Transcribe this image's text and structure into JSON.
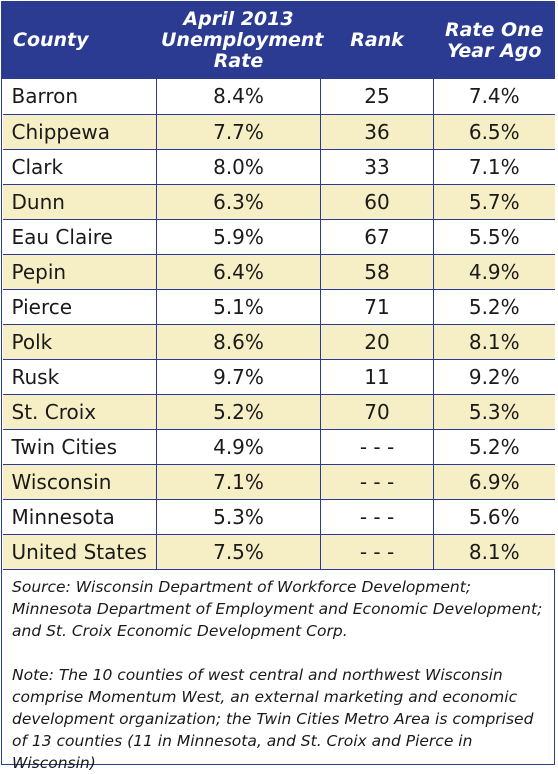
{
  "table": {
    "headers": {
      "county": "County",
      "rate_line1": "April 2013",
      "rate_line2": "Unemployment",
      "rate_line3": "Rate",
      "rank": "Rank",
      "ago_line1": "Rate One",
      "ago_line2": "Year Ago"
    },
    "rows": [
      {
        "county": "Barron",
        "rate": "8.4%",
        "rank": "25",
        "ago": "7.4%"
      },
      {
        "county": "Chippewa",
        "rate": "7.7%",
        "rank": "36",
        "ago": "6.5%"
      },
      {
        "county": "Clark",
        "rate": "8.0%",
        "rank": "33",
        "ago": "7.1%"
      },
      {
        "county": "Dunn",
        "rate": "6.3%",
        "rank": "60",
        "ago": "5.7%"
      },
      {
        "county": "Eau Claire",
        "rate": "5.9%",
        "rank": "67",
        "ago": "5.5%"
      },
      {
        "county": "Pepin",
        "rate": "6.4%",
        "rank": "58",
        "ago": "4.9%"
      },
      {
        "county": "Pierce",
        "rate": "5.1%",
        "rank": "71",
        "ago": "5.2%"
      },
      {
        "county": "Polk",
        "rate": "8.6%",
        "rank": "20",
        "ago": "8.1%"
      },
      {
        "county": "Rusk",
        "rate": "9.7%",
        "rank": "11",
        "ago": "9.2%"
      },
      {
        "county": "St. Croix",
        "rate": "5.2%",
        "rank": "70",
        "ago": "5.3%"
      },
      {
        "county": "Twin Cities",
        "rate": "4.9%",
        "rank": "- - -",
        "ago": "5.2%"
      },
      {
        "county": "Wisconsin",
        "rate": "7.1%",
        "rank": "- - -",
        "ago": "6.9%"
      },
      {
        "county": "Minnesota",
        "rate": "5.3%",
        "rank": "- - -",
        "ago": "5.6%"
      },
      {
        "county": "United States",
        "rate": "7.5%",
        "rank": "- - -",
        "ago": "8.1%"
      }
    ]
  },
  "notes": {
    "source": "Source: Wisconsin Department of Workforce Development; Minnesota Department of Employment and Economic Development; and St. Croix Economic Development Corp.",
    "note": "Note: The 10 counties of west central and northwest Wisconsin comprise Momentum West, an external marketing and economic development organization; the Twin Cities Metro Area is comprised of 13 counties (11 in Minnesota, and St. Croix and Pierce in Wisconsin)"
  },
  "colors": {
    "header_bg": "#2b3b92",
    "header_text": "#ffffff",
    "alt_row_bg": "#f6efc5",
    "border": "#2b3b92"
  }
}
